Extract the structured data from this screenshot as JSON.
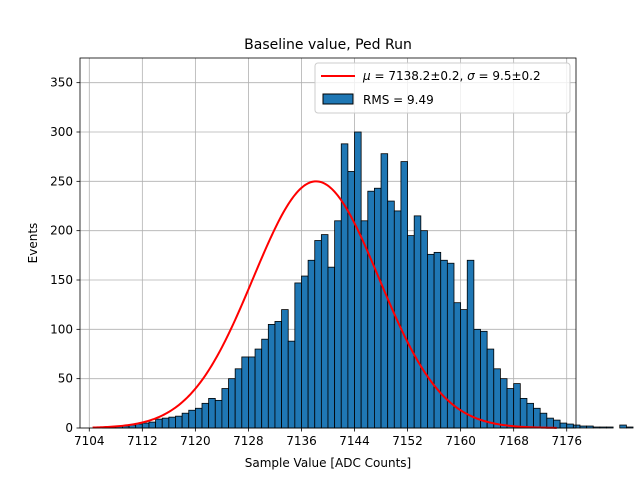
{
  "chart_data": {
    "type": "bar",
    "title": "Baseline value, Ped Run",
    "xlabel": "Sample Value [ADC Counts]",
    "ylabel": "Events",
    "xlim": [
      7102.6,
      7177.4
    ],
    "ylim": [
      0,
      375
    ],
    "grid": true,
    "legend_position": "top-right",
    "x_ticks": [
      7104,
      7112,
      7120,
      7128,
      7136,
      7144,
      7152,
      7160,
      7168,
      7176
    ],
    "y_ticks": [
      0,
      50,
      100,
      150,
      200,
      250,
      300,
      350
    ],
    "histogram": {
      "name": "RMS = 9.49",
      "color": "#1f77b4",
      "edge_color": "#000000",
      "bin_start": 7106,
      "bin_width": 1,
      "counts": [
        1,
        1,
        2,
        2,
        3,
        4,
        5,
        6,
        9,
        10,
        11,
        12,
        15,
        18,
        20,
        25,
        30,
        28,
        40,
        50,
        60,
        72,
        72,
        80,
        90,
        105,
        108,
        120,
        88,
        147,
        154,
        170,
        190,
        196,
        163,
        210,
        288,
        260,
        300,
        210,
        240,
        243,
        278,
        230,
        220,
        270,
        195,
        215,
        200,
        176,
        178,
        170,
        167,
        127,
        120,
        170,
        100,
        98,
        80,
        60,
        50,
        40,
        45,
        30,
        25,
        20,
        15,
        10,
        8,
        5,
        4,
        3,
        2,
        2,
        1,
        1,
        1,
        0,
        3,
        1
      ]
    },
    "fit": {
      "name": "$\\mu = 7138.2 \\pm 0.2$, $\\sigma = 9.5 \\pm 0.2$",
      "label_parts": {
        "mu": "μ",
        "mu_rest": " = 7138.2±0.2, ",
        "sigma": "σ",
        "sigma_rest": " = 9.5±0.2"
      },
      "color": "#ff0000",
      "type": "gaussian",
      "mean": 7138.2,
      "sigma": 9.5,
      "amplitude": 250,
      "x_range": [
        7104.5,
        7174.5
      ]
    }
  }
}
